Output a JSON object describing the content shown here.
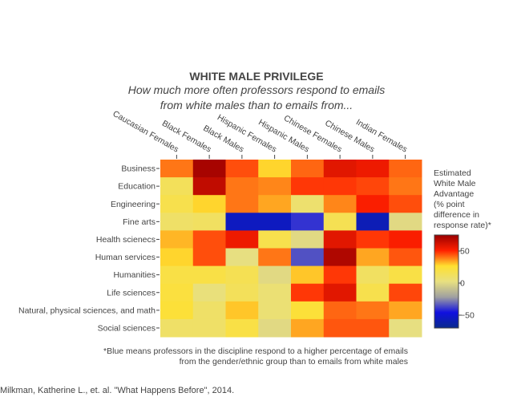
{
  "chart_data": {
    "type": "heatmap",
    "title": "WHITE MALE PRIVILEGE",
    "subtitle_lines": [
      "How much more often professors respond to emails",
      "from white males than to emails from..."
    ],
    "x_categories": [
      "Caucasian Females",
      "Black Females",
      "Black Males",
      "Hispanic Females",
      "Hispanic Males",
      "Chinese Females",
      "Chinese Males",
      "Indian Females"
    ],
    "y_categories": [
      "Business",
      "Education",
      "Engineering",
      "Fine arts",
      "Health scienecs",
      "Human services",
      "Humanities",
      "Life sciences",
      "Natural, physical sciences, and math",
      "Social sciences"
    ],
    "z": [
      [
        40,
        72,
        45,
        28,
        42,
        58,
        55,
        42
      ],
      [
        14,
        66,
        40,
        38,
        48,
        48,
        46,
        40
      ],
      [
        18,
        28,
        40,
        34,
        8,
        38,
        52,
        45
      ],
      [
        10,
        12,
        -55,
        -55,
        -40,
        16,
        -58,
        0
      ],
      [
        32,
        45,
        55,
        18,
        0,
        58,
        48,
        52
      ],
      [
        28,
        45,
        2,
        40,
        -35,
        70,
        34,
        44
      ],
      [
        20,
        20,
        16,
        0,
        30,
        48,
        12,
        20
      ],
      [
        22,
        4,
        14,
        6,
        48,
        58,
        18,
        46
      ],
      [
        24,
        10,
        30,
        6,
        24,
        42,
        40,
        34
      ],
      [
        10,
        10,
        20,
        0,
        34,
        44,
        44,
        2
      ]
    ],
    "zmin": -70,
    "zmax": 75,
    "colorbar": {
      "title": "Estimated\nWhite Male\nAdvantage\n(% point\ndifference in\nresponse rate)*",
      "ticks": [
        50,
        0,
        -50
      ],
      "tick_labels": [
        "50",
        "0",
        "−50"
      ]
    },
    "colors": [
      "#0a2a8c",
      "#1010e0",
      "#a0a0a0",
      "#e8e080",
      "#ffe030",
      "#ff2000",
      "#9a0000"
    ]
  },
  "footnote_lines": [
    "*Blue means professors in the discipline respond to a higher percentage of emails",
    "from the gender/ethnic group than to emails from white males"
  ],
  "source": "Milkman, Katherine L., et. al. \"What Happens Before\", 2014."
}
